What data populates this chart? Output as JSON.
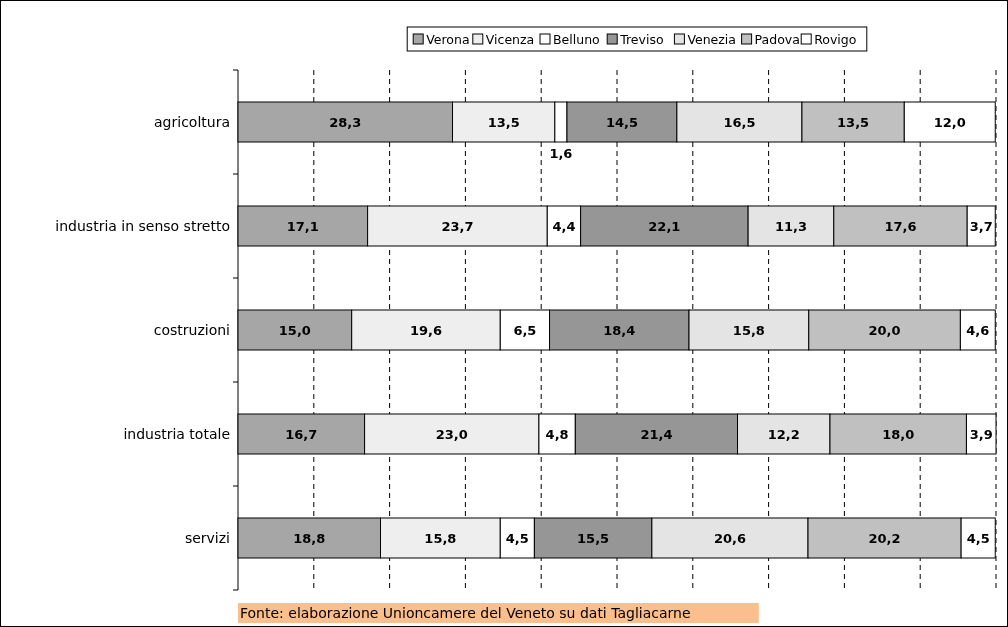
{
  "chart_data": {
    "type": "bar",
    "orientation": "horizontal",
    "stacked": true,
    "legend": "top",
    "grid": "x",
    "categories": [
      "agricoltura",
      "industria in senso stretto",
      "costruzioni",
      "industria totale",
      "servizi"
    ],
    "tick_labels": "y",
    "series": [
      {
        "name": "Verona",
        "color": "#a6a6a6",
        "values": [
          28.3,
          17.1,
          15.0,
          16.7,
          18.8
        ],
        "value_labels": [
          "28,3",
          "17,1",
          "15,0",
          "16,7",
          "18,8"
        ]
      },
      {
        "name": "Vicenza",
        "color": "#eeeeee",
        "values": [
          13.5,
          23.7,
          19.6,
          23.0,
          15.8
        ],
        "value_labels": [
          "13,5",
          "23,7",
          "19,6",
          "23,0",
          "15,8"
        ]
      },
      {
        "name": "Belluno",
        "color": "#ffffff",
        "values": [
          1.6,
          4.4,
          6.5,
          4.8,
          4.5
        ],
        "value_labels": [
          "1,6",
          "4,4",
          "6,5",
          "4,8",
          "4,5"
        ]
      },
      {
        "name": "Treviso",
        "color": "#969696",
        "values": [
          14.5,
          22.1,
          18.4,
          21.4,
          15.5
        ],
        "value_labels": [
          "14,5",
          "22,1",
          "18,4",
          "21,4",
          "15,5"
        ]
      },
      {
        "name": "Venezia",
        "color": "#e4e4e4",
        "values": [
          16.5,
          11.3,
          15.8,
          12.2,
          20.6
        ],
        "value_labels": [
          "16,5",
          "11,3",
          "15,8",
          "12,2",
          "20,6"
        ]
      },
      {
        "name": "Padova",
        "color": "#c0c0c0",
        "values": [
          13.5,
          17.6,
          20.0,
          18.0,
          20.2
        ],
        "value_labels": [
          "13,5",
          "17,6",
          "20,0",
          "18,0",
          "20,2"
        ]
      },
      {
        "name": "Rovigo",
        "color": "#ffffff",
        "values": [
          12.0,
          3.7,
          4.6,
          3.9,
          4.5
        ],
        "value_labels": [
          "12,0",
          "3,7",
          "4,6",
          "3,9",
          "4,5"
        ]
      }
    ],
    "annotations": [
      "Fonte: elaborazione Unioncamere del Veneto su dati Tagliacarne"
    ]
  }
}
